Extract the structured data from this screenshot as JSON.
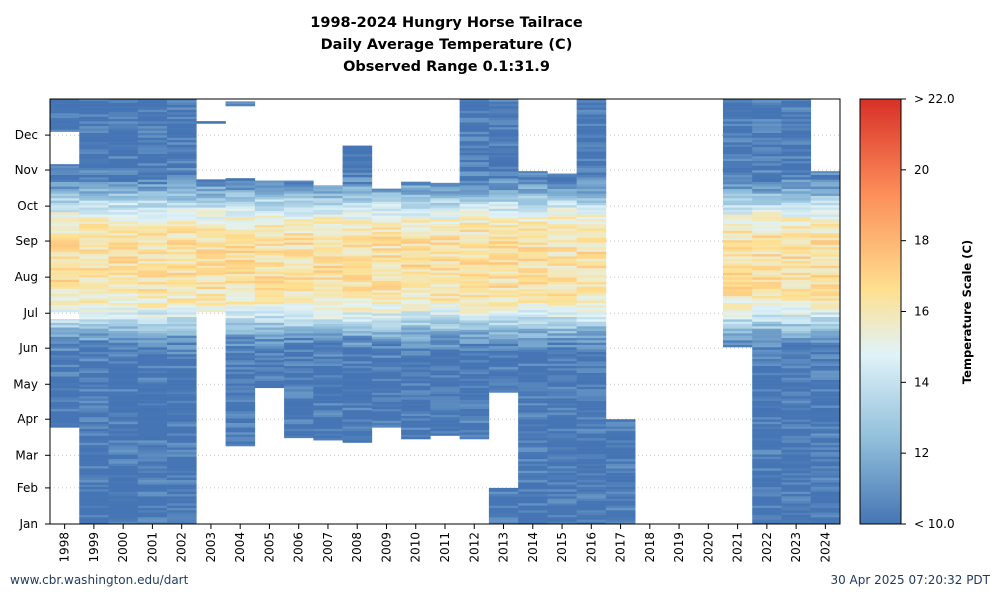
{
  "title": "1998-2024 Hungry Horse Tailrace",
  "subtitle": "Daily Average Temperature (C)",
  "range_text": "Observed Range 0.1:31.9",
  "footer_left": "www.cbr.washington.edu/dart",
  "footer_right": "30 Apr 2025 07:20:32 PDT",
  "chart_data": {
    "type": "heatmap",
    "x_categories": [
      "1998",
      "1999",
      "2000",
      "2001",
      "2002",
      "2003",
      "2004",
      "2005",
      "2006",
      "2007",
      "2008",
      "2009",
      "2010",
      "2011",
      "2012",
      "2013",
      "2014",
      "2015",
      "2016",
      "2017",
      "2018",
      "2019",
      "2020",
      "2021",
      "2022",
      "2023",
      "2024"
    ],
    "y_ticks": [
      "Jan",
      "Feb",
      "Mar",
      "Apr",
      "May",
      "Jun",
      "Jul",
      "Aug",
      "Sep",
      "Oct",
      "Nov",
      "Dec"
    ],
    "y_range_day_of_year": [
      1,
      366
    ],
    "colorbar": {
      "label": "Temperature Scale (C)",
      "range": [
        10,
        22
      ],
      "ticks": [
        "< 10.0",
        "12",
        "14",
        "16",
        "18",
        "20",
        "> 22.0"
      ],
      "colors": [
        "#4575b4",
        "#91bfdb",
        "#e0f3f8",
        "#fee090",
        "#fc8d59",
        "#d73027"
      ]
    },
    "grid": "horizontal dotted at month ticks",
    "coverage": [
      {
        "year": "1998",
        "segments": [
          [
            84,
            176
          ],
          [
            183,
            309
          ],
          [
            338,
            365
          ]
        ]
      },
      {
        "year": "1999",
        "segments": [
          [
            1,
            366
          ]
        ]
      },
      {
        "year": "2000",
        "segments": [
          [
            1,
            366
          ]
        ]
      },
      {
        "year": "2001",
        "segments": [
          [
            1,
            366
          ]
        ]
      },
      {
        "year": "2002",
        "segments": [
          [
            1,
            366
          ]
        ]
      },
      {
        "year": "2003",
        "segments": [
          [
            183,
            296
          ],
          [
            345,
            346
          ]
        ]
      },
      {
        "year": "2004",
        "segments": [
          [
            68,
            297
          ],
          [
            360,
            363
          ]
        ]
      },
      {
        "year": "2005",
        "segments": [
          [
            118,
            295
          ]
        ]
      },
      {
        "year": "2006",
        "segments": [
          [
            75,
            295
          ]
        ]
      },
      {
        "year": "2007",
        "segments": [
          [
            73,
            291
          ]
        ]
      },
      {
        "year": "2008",
        "segments": [
          [
            71,
            325
          ]
        ]
      },
      {
        "year": "2009",
        "segments": [
          [
            84,
            288
          ]
        ]
      },
      {
        "year": "2010",
        "segments": [
          [
            74,
            294
          ]
        ]
      },
      {
        "year": "2011",
        "segments": [
          [
            77,
            293
          ]
        ]
      },
      {
        "year": "2012",
        "segments": [
          [
            74,
            366
          ]
        ]
      },
      {
        "year": "2013",
        "segments": [
          [
            1,
            31
          ],
          [
            114,
            366
          ]
        ]
      },
      {
        "year": "2014",
        "segments": [
          [
            1,
            303
          ]
        ]
      },
      {
        "year": "2015",
        "segments": [
          [
            1,
            301
          ]
        ]
      },
      {
        "year": "2016",
        "segments": [
          [
            1,
            366
          ]
        ]
      },
      {
        "year": "2017",
        "segments": [
          [
            1,
            90
          ]
        ]
      },
      {
        "year": "2021",
        "segments": [
          [
            153,
            366
          ]
        ]
      },
      {
        "year": "2022",
        "segments": [
          [
            1,
            366
          ]
        ]
      },
      {
        "year": "2023",
        "segments": [
          [
            1,
            366
          ]
        ]
      },
      {
        "year": "2024",
        "segments": [
          [
            1,
            303
          ]
        ]
      }
    ]
  }
}
